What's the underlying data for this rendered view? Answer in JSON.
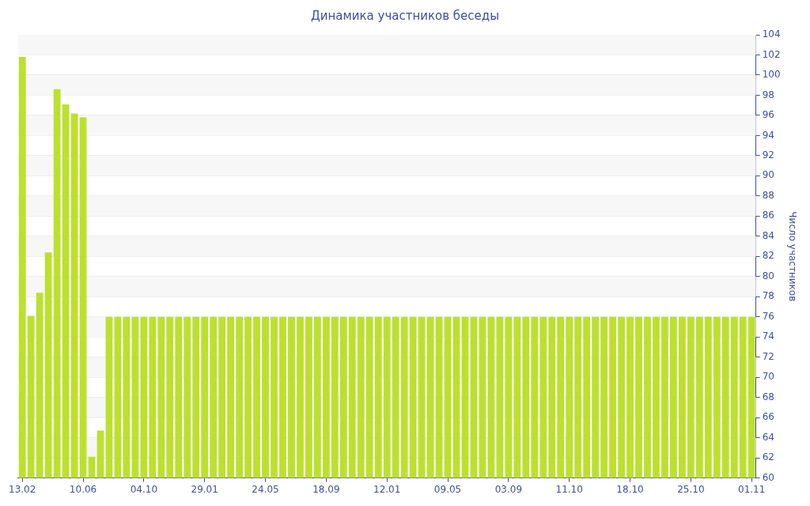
{
  "chart_data": {
    "type": "bar",
    "title": "Динамика участников беседы",
    "ylabel": "Число участников",
    "categories": [
      "13.02",
      null,
      null,
      null,
      null,
      null,
      null,
      "10.06",
      null,
      null,
      null,
      null,
      null,
      null,
      "04.10",
      null,
      null,
      null,
      null,
      null,
      null,
      "29.01",
      null,
      null,
      null,
      null,
      null,
      null,
      "24.05",
      null,
      null,
      null,
      null,
      null,
      null,
      "18.09",
      null,
      null,
      null,
      null,
      null,
      null,
      "12.01",
      null,
      null,
      null,
      null,
      null,
      null,
      "09.05",
      null,
      null,
      null,
      null,
      null,
      null,
      "03.09",
      null,
      null,
      null,
      null,
      null,
      null,
      "11.10",
      null,
      null,
      null,
      null,
      null,
      null,
      "18.10",
      null,
      null,
      null,
      null,
      null,
      null,
      "25.10",
      null,
      null,
      null,
      null,
      null,
      null,
      "01.11"
    ],
    "values": [
      101.8,
      76.1,
      78.4,
      82.4,
      98.6,
      97.1,
      96.2,
      95.8,
      62.1,
      64.7,
      76,
      76,
      76,
      76,
      76,
      76,
      76,
      76,
      76,
      76,
      76,
      76,
      76,
      76,
      76,
      76,
      76,
      76,
      76,
      76,
      76,
      76,
      76,
      76,
      76,
      76,
      76,
      76,
      76,
      76,
      76,
      76,
      76,
      76,
      76,
      76,
      76,
      76,
      76,
      76,
      76,
      76,
      76,
      76,
      76,
      76,
      76,
      76,
      76,
      76,
      76,
      76,
      76,
      76,
      76,
      76,
      76,
      76,
      76,
      76,
      76,
      76,
      76,
      76,
      76,
      76,
      76,
      76,
      76,
      76,
      76,
      76,
      76,
      76,
      76
    ],
    "color": "#bde02e",
    "ylim": [
      60,
      104
    ],
    "yticks": [
      60,
      62,
      64,
      66,
      68,
      70,
      72,
      74,
      76,
      78,
      80,
      82,
      84,
      86,
      88,
      90,
      92,
      94,
      96,
      98,
      100,
      102,
      104
    ],
    "grid": "y"
  }
}
